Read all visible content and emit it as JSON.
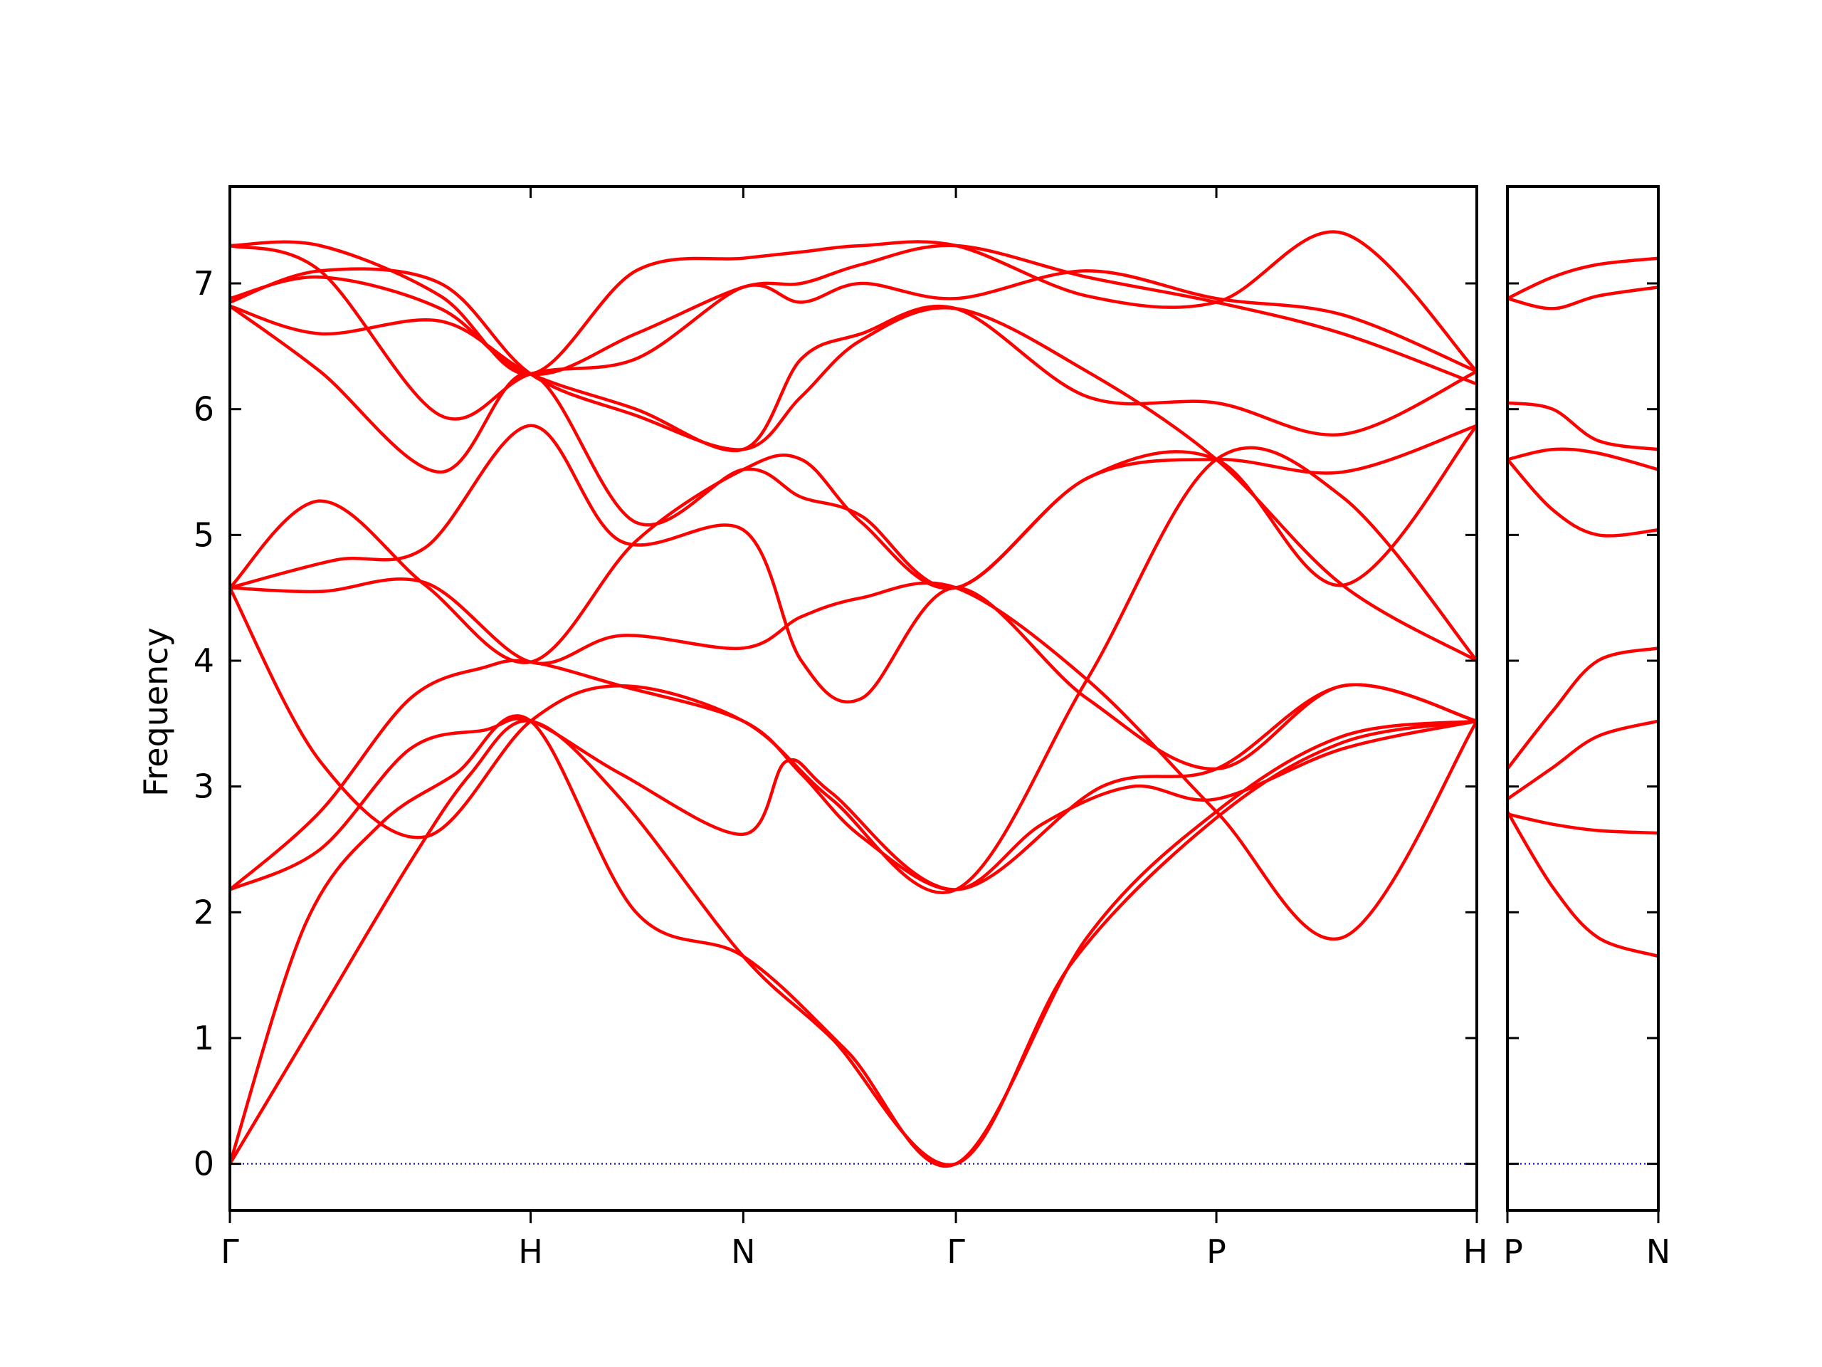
{
  "chart_data": {
    "type": "line",
    "ylabel": "Frequency",
    "ylim": [
      -0.37,
      7.77
    ],
    "yticks": [
      0,
      1,
      2,
      3,
      4,
      5,
      6,
      7
    ],
    "grid": false,
    "colors": {
      "bands": "#ff0000",
      "zero_line": "#0000cc",
      "axes": "#000000"
    },
    "panels": [
      {
        "xticks": [
          {
            "x": 0.0,
            "label": "Γ"
          },
          {
            "x": 1.0,
            "label": "H"
          },
          {
            "x": 1.707,
            "label": "N"
          },
          {
            "x": 2.414,
            "label": "Γ"
          },
          {
            "x": 3.28,
            "label": "P"
          },
          {
            "x": 4.146,
            "label": "H"
          }
        ],
        "xlim": [
          0,
          4.146
        ],
        "series": [
          {
            "x": [
              0,
              0.25,
              0.5,
              0.75,
              1.0,
              1.35,
              1.707,
              2.05,
              2.414,
              2.85,
              3.28,
              3.7,
              4.146
            ],
            "y": [
              0,
              1.9,
              2.7,
              3.1,
              3.52,
              2.0,
              1.65,
              0.9,
              0,
              1.8,
              2.8,
              3.4,
              3.52
            ]
          },
          {
            "x": [
              0,
              0.3,
              0.6,
              0.8,
              1.0,
              1.3,
              1.707,
              2.0,
              2.414,
              2.8,
              3.28,
              3.7,
              4.146
            ],
            "y": [
              0,
              1.2,
              2.4,
              3.1,
              3.52,
              2.9,
              1.65,
              1.0,
              0,
              1.6,
              2.75,
              3.35,
              3.52
            ]
          },
          {
            "x": [
              0,
              0.3,
              0.6,
              0.85,
              1.0,
              1.3,
              1.707,
              1.9,
              2.1,
              2.414,
              2.7,
              3.0,
              3.28,
              3.7,
              4.146
            ],
            "y": [
              2.18,
              2.8,
              3.7,
              3.95,
              3.99,
              3.8,
              3.52,
              3.1,
              2.6,
              2.18,
              2.7,
              3.0,
              2.9,
              3.3,
              3.52
            ]
          },
          {
            "x": [
              0,
              0.3,
              0.6,
              0.85,
              1.0,
              1.3,
              1.707,
              1.85,
              2.0,
              2.414,
              2.9,
              3.28,
              3.7,
              4.146
            ],
            "y": [
              2.18,
              2.5,
              3.3,
              3.45,
              3.52,
              3.1,
              2.62,
              3.2,
              2.95,
              2.18,
              3.0,
              3.14,
              3.8,
              3.52
            ]
          },
          {
            "x": [
              0,
              0.3,
              0.65,
              1.0,
              1.3,
              1.707,
              2.0,
              2.414,
              2.85,
              3.28,
              3.7,
              4.146
            ],
            "y": [
              4.58,
              3.2,
              2.6,
              3.52,
              3.8,
              3.52,
              2.9,
              2.18,
              3.85,
              5.6,
              5.3,
              4.0
            ]
          },
          {
            "x": [
              0,
              0.3,
              0.65,
              1.0,
              1.3,
              1.707,
              1.9,
              2.1,
              2.414,
              2.85,
              3.28,
              3.7,
              4.146
            ],
            "y": [
              4.58,
              4.55,
              4.62,
              3.99,
              4.2,
              4.1,
              4.35,
              4.5,
              4.58,
              3.85,
              2.8,
              1.8,
              3.52
            ]
          },
          {
            "x": [
              0,
              0.35,
              0.65,
              1.0,
              1.3,
              1.707,
              1.9,
              2.1,
              2.414,
              2.85,
              3.28,
              3.7,
              4.146
            ],
            "y": [
              4.58,
              4.8,
              4.9,
              5.87,
              4.95,
              5.04,
              4.0,
              3.7,
              4.58,
              3.7,
              3.14,
              3.8,
              3.52
            ]
          },
          {
            "x": [
              0,
              0.3,
              0.65,
              1.0,
              1.35,
              1.707,
              1.9,
              2.1,
              2.414,
              2.85,
              3.28,
              3.7,
              4.146
            ],
            "y": [
              4.58,
              5.27,
              4.6,
              3.99,
              4.95,
              5.52,
              5.6,
              5.1,
              4.58,
              5.45,
              5.6,
              4.6,
              5.87
            ]
          },
          {
            "x": [
              0,
              0.3,
              0.7,
              1.0,
              1.35,
              1.707,
              1.9,
              2.1,
              2.414,
              2.85,
              3.28,
              3.7,
              4.146
            ],
            "y": [
              6.82,
              6.3,
              5.5,
              6.28,
              5.1,
              5.52,
              5.3,
              5.15,
              4.58,
              5.45,
              5.6,
              5.5,
              5.87
            ]
          },
          {
            "x": [
              0,
              0.3,
              0.7,
              1.0,
              1.35,
              1.707,
              1.9,
              2.1,
              2.414,
              2.85,
              3.28,
              3.7,
              4.146
            ],
            "y": [
              6.82,
              6.6,
              6.7,
              6.28,
              6.0,
              5.68,
              6.4,
              6.6,
              6.8,
              6.1,
              6.05,
              5.8,
              6.3
            ]
          },
          {
            "x": [
              0,
              0.3,
              0.7,
              1.0,
              1.35,
              1.707,
              1.9,
              2.1,
              2.414,
              2.85,
              3.28,
              3.7,
              4.146
            ],
            "y": [
              6.85,
              7.1,
              7.0,
              6.28,
              5.95,
              5.68,
              6.1,
              6.55,
              6.8,
              6.3,
              5.6,
              4.6,
              4.0
            ]
          },
          {
            "x": [
              0,
              0.3,
              0.7,
              1.0,
              1.35,
              1.707,
              1.9,
              2.1,
              2.414,
              2.85,
              3.28,
              3.7,
              4.146
            ],
            "y": [
              7.3,
              7.1,
              5.95,
              6.28,
              6.4,
              6.97,
              6.85,
              7.0,
              6.88,
              7.1,
              6.88,
              6.75,
              6.3
            ]
          },
          {
            "x": [
              0,
              0.3,
              0.7,
              1.0,
              1.35,
              1.707,
              1.9,
              2.1,
              2.414,
              2.85,
              3.28,
              3.7,
              4.146
            ],
            "y": [
              7.3,
              7.3,
              6.9,
              6.28,
              7.1,
              7.2,
              7.25,
              7.3,
              7.3,
              6.9,
              6.85,
              7.4,
              6.3
            ]
          },
          {
            "x": [
              0,
              0.3,
              0.7,
              1.0,
              1.35,
              1.707,
              1.9,
              2.1,
              2.414,
              2.85,
              3.28,
              3.7,
              4.146
            ],
            "y": [
              6.88,
              7.05,
              6.8,
              6.28,
              6.6,
              6.97,
              7.0,
              7.15,
              7.3,
              7.05,
              6.85,
              6.6,
              6.2
            ]
          }
        ]
      },
      {
        "xticks": [
          {
            "x": 0.0,
            "label": "P"
          },
          {
            "x": 0.5,
            "label": "N"
          }
        ],
        "xlim": [
          0,
          0.5
        ],
        "series": [
          {
            "x": [
              0,
              0.15,
              0.3,
              0.5
            ],
            "y": [
              2.8,
              2.2,
              1.8,
              1.65
            ]
          },
          {
            "x": [
              0,
              0.15,
              0.3,
              0.5
            ],
            "y": [
              2.78,
              2.7,
              2.65,
              2.63
            ]
          },
          {
            "x": [
              0,
              0.15,
              0.3,
              0.5
            ],
            "y": [
              2.9,
              3.15,
              3.4,
              3.52
            ]
          },
          {
            "x": [
              0,
              0.15,
              0.3,
              0.5
            ],
            "y": [
              3.14,
              3.6,
              4.0,
              4.1
            ]
          },
          {
            "x": [
              0,
              0.15,
              0.3,
              0.5
            ],
            "y": [
              5.6,
              5.2,
              5.0,
              5.04
            ]
          },
          {
            "x": [
              0,
              0.15,
              0.3,
              0.5
            ],
            "y": [
              5.6,
              5.68,
              5.65,
              5.52
            ]
          },
          {
            "x": [
              0,
              0.15,
              0.3,
              0.5
            ],
            "y": [
              6.05,
              6.0,
              5.75,
              5.68
            ]
          },
          {
            "x": [
              0,
              0.15,
              0.3,
              0.5
            ],
            "y": [
              6.88,
              6.8,
              6.9,
              6.97
            ]
          },
          {
            "x": [
              0,
              0.15,
              0.3,
              0.5
            ],
            "y": [
              6.88,
              7.05,
              7.15,
              7.2
            ]
          }
        ]
      }
    ]
  }
}
